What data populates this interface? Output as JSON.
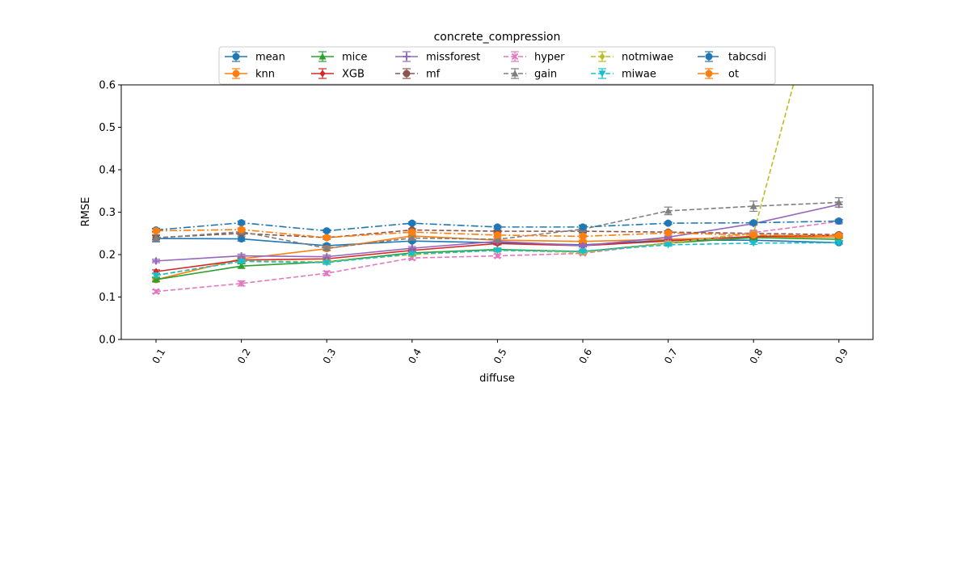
{
  "chart_data": {
    "type": "line",
    "title": "concrete_compression",
    "xlabel": "diffuse",
    "ylabel": "RMSE",
    "x": [
      0.1,
      0.2,
      0.3,
      0.4,
      0.5,
      0.6,
      0.7,
      0.8,
      0.9
    ],
    "x_tick_labels": [
      "0.1",
      "0.2",
      "0.3",
      "0.4",
      "0.5",
      "0.6",
      "0.7",
      "0.8",
      "0.9"
    ],
    "ylim": [
      0.0,
      0.6
    ],
    "y_ticks": [
      0.0,
      0.1,
      0.2,
      0.3,
      0.4,
      0.5,
      0.6
    ],
    "y_tick_labels": [
      "0.0",
      "0.1",
      "0.2",
      "0.3",
      "0.4",
      "0.5",
      "0.6"
    ],
    "legend_position": "top-center",
    "legend_columns": 6,
    "series": [
      {
        "name": "mean",
        "color": "#1f77b4",
        "marker": "circle",
        "dash": "solid",
        "values": [
          0.238,
          0.237,
          0.221,
          0.232,
          0.228,
          0.223,
          0.234,
          0.234,
          0.228
        ],
        "errors": [
          0.008,
          0.005,
          0.004,
          0.003,
          0.003,
          0.003,
          0.003,
          0.003,
          0.003
        ]
      },
      {
        "name": "knn",
        "color": "#ff7f0e",
        "marker": "circle",
        "dash": "solid",
        "values": [
          0.141,
          0.19,
          0.214,
          0.244,
          0.234,
          0.231,
          0.236,
          0.241,
          0.241
        ],
        "errors": [
          0.005,
          0.004,
          0.004,
          0.003,
          0.003,
          0.003,
          0.003,
          0.003,
          0.003
        ]
      },
      {
        "name": "mice",
        "color": "#2ca02c",
        "marker": "triangle-up",
        "dash": "solid",
        "values": [
          0.141,
          0.173,
          0.183,
          0.204,
          0.212,
          0.207,
          0.227,
          0.24,
          0.236
        ],
        "errors": [
          0.004,
          0.005,
          0.004,
          0.004,
          0.003,
          0.003,
          0.003,
          0.003,
          0.003
        ]
      },
      {
        "name": "XGB",
        "color": "#d62728",
        "marker": "diamond",
        "dash": "solid",
        "values": [
          0.16,
          0.187,
          0.19,
          0.21,
          0.226,
          0.221,
          0.232,
          0.243,
          0.245
        ],
        "errors": [
          0.004,
          0.004,
          0.004,
          0.003,
          0.003,
          0.003,
          0.003,
          0.003,
          0.003
        ]
      },
      {
        "name": "missforest",
        "color": "#9467bd",
        "marker": "plus",
        "dash": "solid",
        "values": [
          0.185,
          0.197,
          0.195,
          0.215,
          0.231,
          0.221,
          0.241,
          0.273,
          0.318
        ],
        "errors": [
          0.004,
          0.004,
          0.004,
          0.004,
          0.003,
          0.003,
          0.003,
          0.004,
          0.006
        ]
      },
      {
        "name": "mf",
        "color": "#8c564b",
        "marker": "circle",
        "dash": "dashed",
        "values": [
          0.24,
          0.25,
          0.24,
          0.258,
          0.255,
          0.255,
          0.253,
          0.25,
          0.247
        ],
        "errors": [
          0.005,
          0.004,
          0.004,
          0.003,
          0.003,
          0.003,
          0.003,
          0.003,
          0.003
        ]
      },
      {
        "name": "hyper",
        "color": "#e377c2",
        "marker": "x",
        "dash": "dashed",
        "values": [
          0.113,
          0.132,
          0.156,
          0.192,
          0.197,
          0.203,
          0.227,
          0.252,
          0.278
        ],
        "errors": [
          0.004,
          0.006,
          0.005,
          0.004,
          0.004,
          0.003,
          0.004,
          0.004,
          0.005
        ]
      },
      {
        "name": "gain",
        "color": "#7f7f7f",
        "marker": "triangle-up",
        "dash": "dashed",
        "values": [
          0.239,
          0.254,
          0.215,
          0.239,
          0.236,
          0.26,
          0.303,
          0.314,
          0.323
        ],
        "errors": [
          0.008,
          0.006,
          0.005,
          0.005,
          0.004,
          0.01,
          0.009,
          0.012,
          0.011
        ]
      },
      {
        "name": "notmiwae",
        "color": "#bcbd22",
        "marker": "diamond",
        "dash": "dashed",
        "values": [
          0.151,
          0.185,
          0.183,
          0.2,
          0.21,
          0.205,
          0.227,
          0.25,
          1.0
        ],
        "errors": [
          0.004,
          0.004,
          0.004,
          0.003,
          0.003,
          0.003,
          0.003,
          0.003,
          0.0
        ]
      },
      {
        "name": "miwae",
        "color": "#17becf",
        "marker": "triangle-down",
        "dash": "dashed",
        "values": [
          0.151,
          0.184,
          0.181,
          0.202,
          0.21,
          0.208,
          0.223,
          0.227,
          0.228
        ],
        "errors": [
          0.004,
          0.004,
          0.004,
          0.003,
          0.003,
          0.003,
          0.003,
          0.003,
          0.003
        ]
      },
      {
        "name": "tabcsdi",
        "color": "#1f77b4",
        "marker": "circle",
        "dash": "dashdot",
        "values": [
          0.258,
          0.275,
          0.256,
          0.274,
          0.265,
          0.265,
          0.274,
          0.275,
          0.279
        ],
        "errors": [
          0.004,
          0.004,
          0.003,
          0.003,
          0.003,
          0.003,
          0.003,
          0.003,
          0.003
        ]
      },
      {
        "name": "ot",
        "color": "#ff7f0e",
        "marker": "circle",
        "dash": "dashdot",
        "values": [
          0.256,
          0.259,
          0.24,
          0.253,
          0.246,
          0.243,
          0.251,
          0.246,
          0.245
        ],
        "errors": [
          0.004,
          0.004,
          0.003,
          0.003,
          0.003,
          0.003,
          0.003,
          0.003,
          0.003
        ]
      }
    ]
  }
}
